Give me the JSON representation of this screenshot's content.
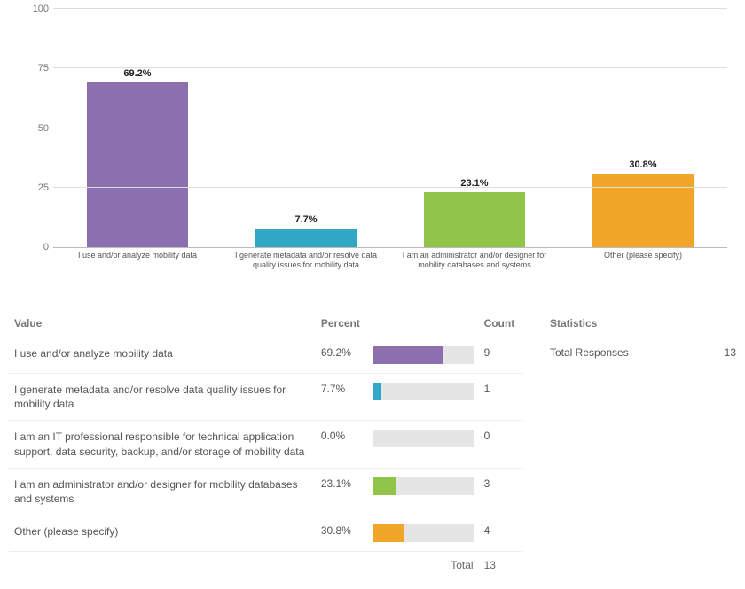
{
  "chart": {
    "type": "bar",
    "ylim": [
      0,
      100
    ],
    "yticks": [
      0,
      25,
      50,
      75,
      100
    ],
    "grid_color": "#dddddd",
    "axis_color": "#bbbbbb",
    "background_color": "#ffffff",
    "label_fontsize": 9,
    "value_fontsize": 11,
    "bars": [
      {
        "label": "I use and/or analyze mobility data",
        "value": 69.2,
        "value_label": "69.2%",
        "color": "#8b6fae"
      },
      {
        "label": "I generate metadata and/or resolve data quality issues for mobility data",
        "value": 7.7,
        "value_label": "7.7%",
        "color": "#2fa7c5"
      },
      {
        "label": "I am an administrator and/or designer for mobility databases and systems",
        "value": 23.1,
        "value_label": "23.1%",
        "color": "#91c549"
      },
      {
        "label": "Other (please specify)",
        "value": 30.8,
        "value_label": "30.8%",
        "color": "#f2a629"
      }
    ]
  },
  "table": {
    "headers": {
      "value": "Value",
      "percent": "Percent",
      "count": "Count"
    },
    "rows": [
      {
        "value": "I use and/or analyze mobility data",
        "percent": 69.2,
        "percent_label": "69.2%",
        "count": "9",
        "color": "#8b6fae"
      },
      {
        "value": "I generate metadata and/or resolve data quality issues for mobility data",
        "percent": 7.7,
        "percent_label": "7.7%",
        "count": "1",
        "color": "#2fa7c5"
      },
      {
        "value": "I am an IT professional responsible for technical application support, data security, backup, and/or storage of mobility data",
        "percent": 0.0,
        "percent_label": "0.0%",
        "count": "0",
        "color": "#cccccc"
      },
      {
        "value": "I am an administrator and/or designer for mobility databases and systems",
        "percent": 23.1,
        "percent_label": "23.1%",
        "count": "3",
        "color": "#91c549"
      },
      {
        "value": "Other (please specify)",
        "percent": 30.8,
        "percent_label": "30.8%",
        "count": "4",
        "color": "#f2a629"
      }
    ],
    "total_label": "Total",
    "total_count": "13",
    "mini_bar_bg": "#e5e5e5"
  },
  "stats": {
    "header": "Statistics",
    "rows": [
      {
        "label": "Total Responses",
        "value": "13"
      }
    ]
  }
}
